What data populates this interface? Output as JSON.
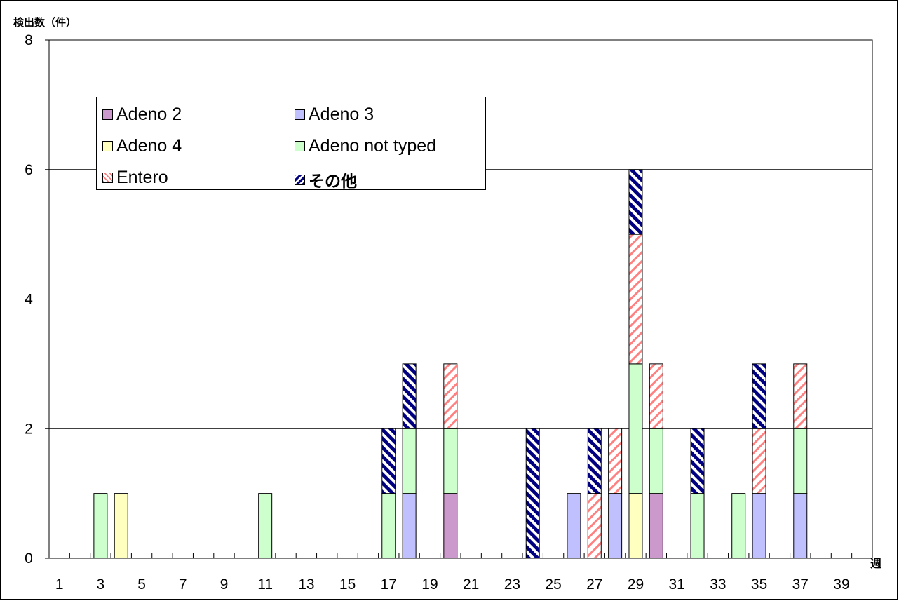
{
  "chart_data": {
    "type": "bar",
    "stacked": true,
    "title": "",
    "ylabel": "検出数（件）",
    "xlabel": "週",
    "ylim": [
      0,
      8
    ],
    "yticks": [
      0,
      2,
      4,
      6,
      8
    ],
    "xlim": [
      1,
      40
    ],
    "xtick_labels": [
      "1",
      "3",
      "5",
      "7",
      "9",
      "11",
      "13",
      "15",
      "17",
      "19",
      "21",
      "23",
      "25",
      "27",
      "29",
      "31",
      "33",
      "35",
      "37",
      "39"
    ],
    "grid": true,
    "legend": "upper-left-inside",
    "weeks": [
      3,
      4,
      11,
      17,
      18,
      20,
      24,
      26,
      27,
      28,
      29,
      30,
      32,
      34,
      35,
      37
    ],
    "series": [
      {
        "name": "Adeno 2",
        "color": "#cc99cc",
        "pattern": "solid",
        "values": [
          0,
          0,
          0,
          0,
          0,
          1,
          0,
          0,
          0,
          0,
          0,
          1,
          0,
          0,
          0,
          0
        ]
      },
      {
        "name": "Adeno 3",
        "color": "#c0c0ff",
        "pattern": "solid",
        "values": [
          0,
          0,
          0,
          0,
          1,
          0,
          0,
          1,
          0,
          1,
          0,
          0,
          0,
          0,
          1,
          1
        ]
      },
      {
        "name": "Adeno 4",
        "color": "#ffffc0",
        "pattern": "solid",
        "values": [
          0,
          1,
          0,
          0,
          0,
          0,
          0,
          0,
          0,
          0,
          1,
          0,
          0,
          0,
          0,
          0
        ]
      },
      {
        "name": "Adeno not typed",
        "color": "#ccffcc",
        "pattern": "solid",
        "values": [
          1,
          0,
          1,
          1,
          1,
          1,
          0,
          0,
          0,
          0,
          2,
          1,
          1,
          1,
          0,
          1
        ]
      },
      {
        "name": "Entero",
        "color": "#ff8080",
        "pattern": "diagonal-light",
        "values": [
          0,
          0,
          0,
          0,
          0,
          1,
          0,
          0,
          1,
          1,
          2,
          1,
          0,
          0,
          1,
          1
        ]
      },
      {
        "name": "その他",
        "color": "#000080",
        "pattern": "diagonal-dark",
        "values": [
          0,
          0,
          0,
          1,
          1,
          0,
          2,
          0,
          1,
          0,
          1,
          0,
          1,
          0,
          1,
          0
        ]
      }
    ]
  }
}
